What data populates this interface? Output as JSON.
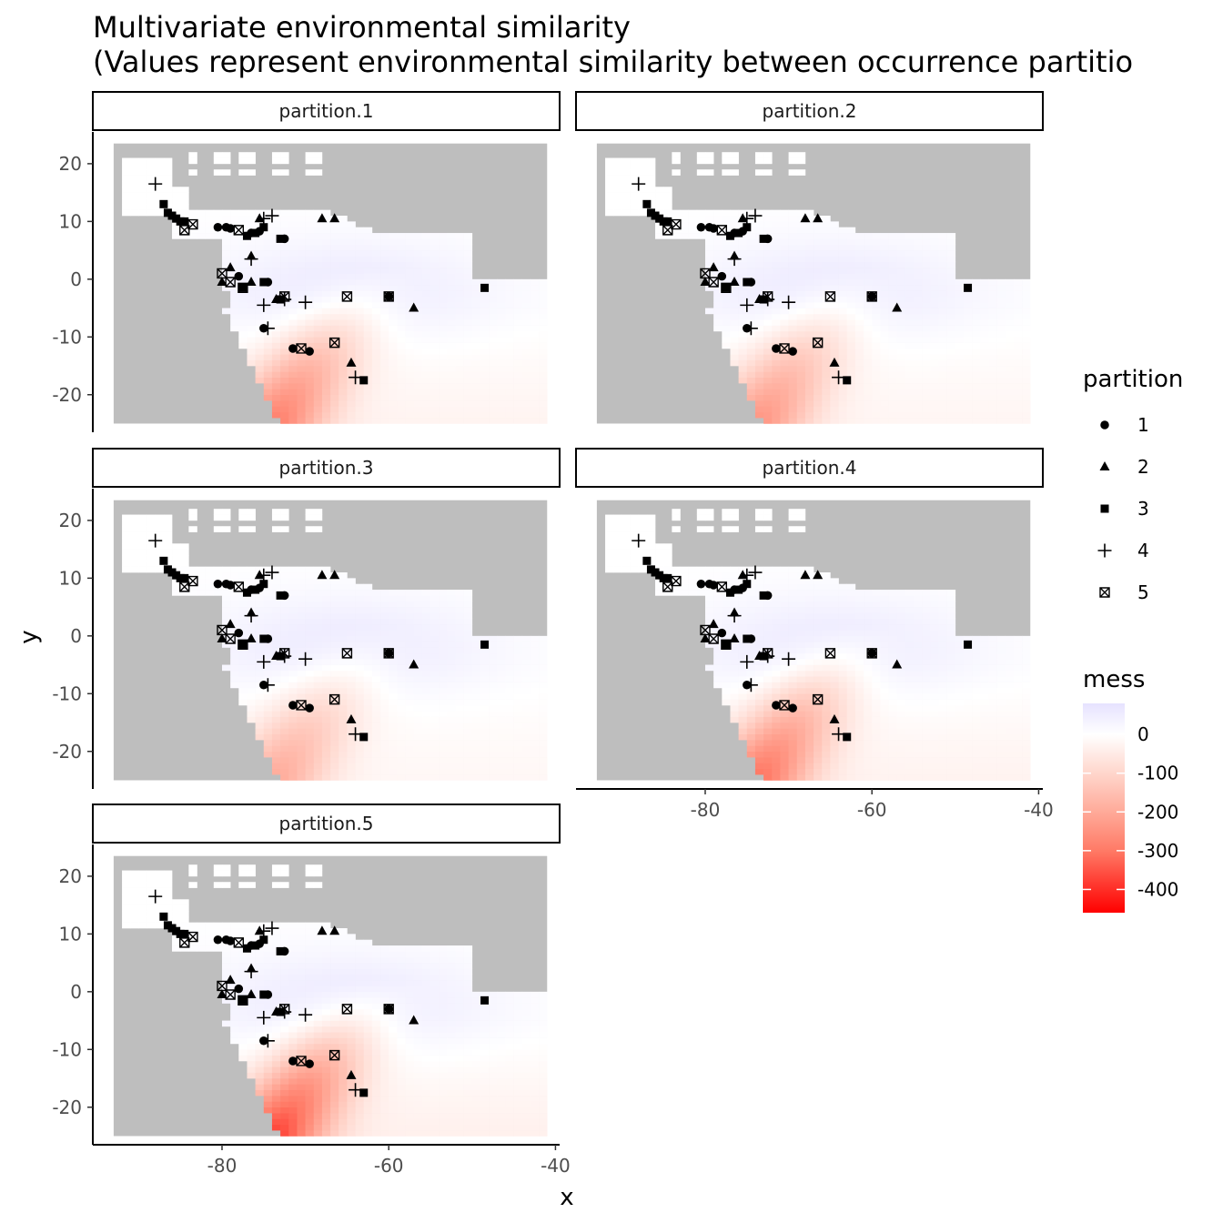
{
  "chart_data": {
    "type": "scatter",
    "title_lines": [
      "Multivariate environmental similarity",
      "(Values represent environmental similarity between occurrence partitio"
    ],
    "xlabel": "x",
    "ylabel": "y",
    "xlim": [
      -95.5,
      -39.5
    ],
    "ylim": [
      -26.5,
      25.5
    ],
    "x_ticks": [
      -80,
      -60,
      -40
    ],
    "x_tick_labels": [
      "-80",
      "-60",
      "-40"
    ],
    "y_ticks": [
      20,
      10,
      0,
      -10,
      -20
    ],
    "y_tick_labels": [
      "20",
      "10",
      "0",
      "-10",
      "-20"
    ],
    "panels": [
      "partition.1",
      "partition.2",
      "partition.3",
      "partition.4",
      "partition.5"
    ],
    "raster_extent": {
      "xmin": -93,
      "xmax": -41,
      "ymin": -25,
      "ymax": 23.5
    },
    "background_color": "#bebebe",
    "legend_shape": {
      "title": "partition",
      "entries": [
        {
          "label": "1",
          "shape": "circle"
        },
        {
          "label": "2",
          "shape": "triangle"
        },
        {
          "label": "3",
          "shape": "square"
        },
        {
          "label": "4",
          "shape": "plus"
        },
        {
          "label": "5",
          "shape": "square-x"
        }
      ]
    },
    "legend_fill": {
      "title": "mess",
      "tick_values": [
        0,
        -100,
        -200,
        -300,
        -400
      ],
      "tick_labels": [
        "0",
        "-100",
        "-200",
        "-300",
        "-400"
      ],
      "range": [
        -460,
        80
      ],
      "colors": [
        {
          "value": 80,
          "color": "#e6e2ff"
        },
        {
          "value": 0,
          "color": "#ffffff"
        },
        {
          "value": -100,
          "color": "#ffd6cc"
        },
        {
          "value": -200,
          "color": "#ffaa99"
        },
        {
          "value": -300,
          "color": "#ff7a66"
        },
        {
          "value": -460,
          "color": "#ff0000"
        }
      ]
    },
    "panel_intensity": [
      0.65,
      0.55,
      0.45,
      0.7,
      0.85
    ],
    "series": [
      {
        "name": "1",
        "shape": "circle",
        "points": [
          [
            -80.5,
            9.0
          ],
          [
            -79.5,
            9.0
          ],
          [
            -79.0,
            8.8
          ],
          [
            -76.5,
            8.0
          ],
          [
            -75.5,
            8.3
          ],
          [
            -72.5,
            7.0
          ],
          [
            -74.5,
            -0.5
          ],
          [
            -78.0,
            0.5
          ],
          [
            -75.0,
            -8.5
          ],
          [
            -71.5,
            -12.0
          ],
          [
            -69.5,
            -12.5
          ],
          [
            -60.0,
            -3.0
          ]
        ]
      },
      {
        "name": "2",
        "shape": "triangle",
        "points": [
          [
            -68.0,
            10.5
          ],
          [
            -66.5,
            10.5
          ],
          [
            -75.5,
            10.5
          ],
          [
            -79.0,
            2.0
          ],
          [
            -76.5,
            4.0
          ],
          [
            -76.5,
            -0.5
          ],
          [
            -73.5,
            -3.5
          ],
          [
            -57.0,
            -5.0
          ],
          [
            -64.5,
            -14.5
          ],
          [
            -80.0,
            -0.5
          ]
        ]
      },
      {
        "name": "3",
        "shape": "square",
        "points": [
          [
            -87.0,
            13.0
          ],
          [
            -86.5,
            11.5
          ],
          [
            -86.0,
            11.0
          ],
          [
            -85.5,
            10.5
          ],
          [
            -85.0,
            10.0
          ],
          [
            -84.5,
            10.0
          ],
          [
            -77.0,
            7.5
          ],
          [
            -76.0,
            8.0
          ],
          [
            -75.0,
            9.0
          ],
          [
            -73.0,
            7.0
          ],
          [
            -73.0,
            -3.5
          ],
          [
            -77.5,
            -1.5
          ],
          [
            -75.0,
            -0.5
          ],
          [
            -48.5,
            -1.5
          ],
          [
            -63.0,
            -17.5
          ]
        ]
      },
      {
        "name": "4",
        "shape": "plus",
        "points": [
          [
            -88.0,
            16.5
          ],
          [
            -74.0,
            11.0
          ],
          [
            -75.0,
            10.5
          ],
          [
            -76.5,
            3.5
          ],
          [
            -75.0,
            -4.5
          ],
          [
            -74.5,
            -8.5
          ],
          [
            -70.0,
            -4.0
          ],
          [
            -64.0,
            -17.0
          ],
          [
            -72.5,
            -3.5
          ]
        ]
      },
      {
        "name": "5",
        "shape": "square-x",
        "points": [
          [
            -84.5,
            8.5
          ],
          [
            -83.5,
            9.5
          ],
          [
            -80.0,
            1.0
          ],
          [
            -79.0,
            -0.5
          ],
          [
            -77.5,
            -1.5
          ],
          [
            -72.5,
            -3.0
          ],
          [
            -65.0,
            -3.0
          ],
          [
            -60.0,
            -3.0
          ],
          [
            -66.5,
            -11.0
          ],
          [
            -70.5,
            -12.0
          ],
          [
            -78.0,
            8.5
          ]
        ]
      }
    ]
  }
}
